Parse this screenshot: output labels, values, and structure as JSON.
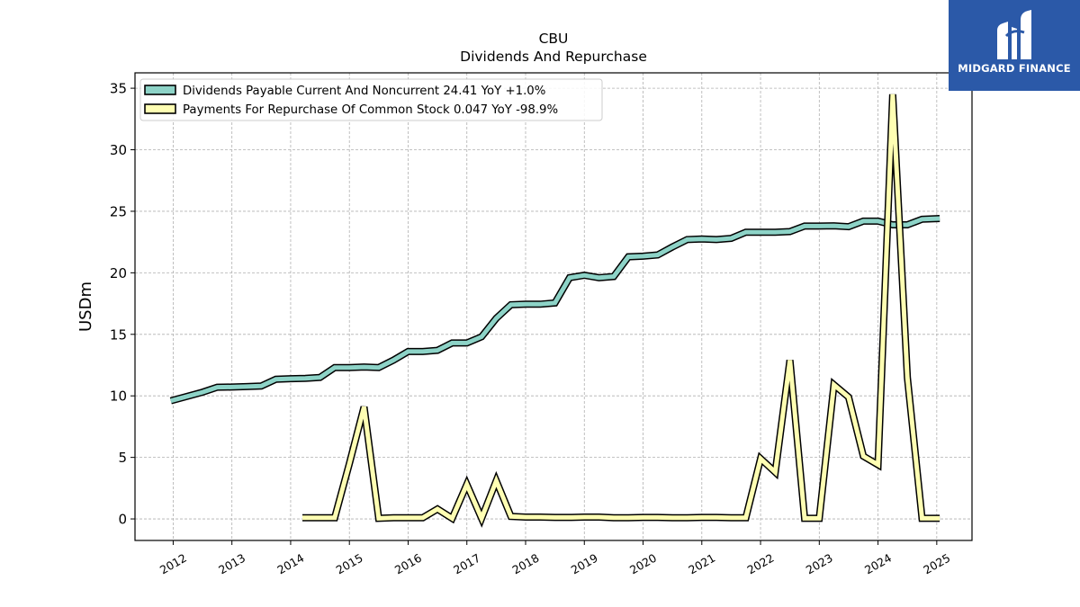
{
  "chart_data": {
    "type": "line",
    "title": "CBU",
    "subtitle": "Dividends And Repurchase",
    "ylabel": "USDm",
    "xlabel": "",
    "xlim": [
      2011.35,
      2025.6
    ],
    "ylim": [
      -1.75,
      36.25
    ],
    "yticks": [
      0,
      5,
      10,
      15,
      20,
      25,
      30,
      35
    ],
    "xticks": [
      "2012",
      "2013",
      "2014",
      "2015",
      "2016",
      "2017",
      "2018",
      "2019",
      "2020",
      "2021",
      "2022",
      "2023",
      "2024",
      "2025"
    ],
    "grid": true,
    "legend_position": "top-left",
    "series": [
      {
        "name": "Dividends Payable Current And Noncurrent  24.41 YoY +1.0%",
        "color": "#8dd3c7",
        "points": [
          [
            2011.96,
            9.6
          ],
          [
            2012.5,
            10.3
          ],
          [
            2012.75,
            10.7
          ],
          [
            2013.0,
            10.72
          ],
          [
            2013.25,
            10.75
          ],
          [
            2013.5,
            10.8
          ],
          [
            2013.75,
            11.35
          ],
          [
            2014.0,
            11.4
          ],
          [
            2014.25,
            11.42
          ],
          [
            2014.5,
            11.5
          ],
          [
            2014.75,
            12.3
          ],
          [
            2015.0,
            12.3
          ],
          [
            2015.25,
            12.35
          ],
          [
            2015.5,
            12.3
          ],
          [
            2015.75,
            12.9
          ],
          [
            2016.0,
            13.6
          ],
          [
            2016.25,
            13.6
          ],
          [
            2016.5,
            13.7
          ],
          [
            2016.75,
            14.3
          ],
          [
            2017.0,
            14.3
          ],
          [
            2017.25,
            14.8
          ],
          [
            2017.5,
            16.3
          ],
          [
            2017.75,
            17.4
          ],
          [
            2018.0,
            17.45
          ],
          [
            2018.25,
            17.45
          ],
          [
            2018.5,
            17.55
          ],
          [
            2018.75,
            19.6
          ],
          [
            2019.0,
            19.8
          ],
          [
            2019.25,
            19.6
          ],
          [
            2019.5,
            19.7
          ],
          [
            2019.75,
            21.3
          ],
          [
            2020.0,
            21.35
          ],
          [
            2020.25,
            21.45
          ],
          [
            2020.5,
            22.1
          ],
          [
            2020.75,
            22.7
          ],
          [
            2021.0,
            22.75
          ],
          [
            2021.25,
            22.7
          ],
          [
            2021.5,
            22.8
          ],
          [
            2021.75,
            23.3
          ],
          [
            2022.0,
            23.3
          ],
          [
            2022.25,
            23.3
          ],
          [
            2022.5,
            23.35
          ],
          [
            2022.75,
            23.8
          ],
          [
            2023.0,
            23.8
          ],
          [
            2023.25,
            23.82
          ],
          [
            2023.5,
            23.75
          ],
          [
            2023.75,
            24.2
          ],
          [
            2024.0,
            24.2
          ],
          [
            2024.25,
            23.9
          ],
          [
            2024.5,
            23.9
          ],
          [
            2024.75,
            24.35
          ],
          [
            2025.05,
            24.41
          ]
        ]
      },
      {
        "name": "Payments For Repurchase Of Common Stock  0.047 YoY -98.9%",
        "color": "#ffffb3",
        "points": [
          [
            2014.2,
            0.1
          ],
          [
            2014.5,
            0.1
          ],
          [
            2014.75,
            0.1
          ],
          [
            2015.0,
            4.5
          ],
          [
            2015.25,
            9.1
          ],
          [
            2015.5,
            0.05
          ],
          [
            2015.75,
            0.1
          ],
          [
            2016.0,
            0.1
          ],
          [
            2016.25,
            0.1
          ],
          [
            2016.5,
            0.8
          ],
          [
            2016.75,
            0.05
          ],
          [
            2017.0,
            2.8
          ],
          [
            2017.25,
            0.05
          ],
          [
            2017.5,
            3.1
          ],
          [
            2017.75,
            0.2
          ],
          [
            2018.0,
            0.15
          ],
          [
            2018.25,
            0.15
          ],
          [
            2018.5,
            0.12
          ],
          [
            2018.75,
            0.12
          ],
          [
            2019.0,
            0.15
          ],
          [
            2019.25,
            0.15
          ],
          [
            2019.5,
            0.1
          ],
          [
            2019.75,
            0.1
          ],
          [
            2020.0,
            0.12
          ],
          [
            2020.25,
            0.12
          ],
          [
            2020.5,
            0.1
          ],
          [
            2020.75,
            0.1
          ],
          [
            2021.0,
            0.12
          ],
          [
            2021.25,
            0.12
          ],
          [
            2021.5,
            0.1
          ],
          [
            2021.75,
            0.1
          ],
          [
            2022.0,
            4.9
          ],
          [
            2022.25,
            3.8
          ],
          [
            2022.5,
            12.9
          ],
          [
            2022.75,
            0.05
          ],
          [
            2023.0,
            0.05
          ],
          [
            2023.25,
            10.9
          ],
          [
            2023.5,
            9.9
          ],
          [
            2023.75,
            5.1
          ],
          [
            2024.0,
            4.4
          ],
          [
            2024.25,
            34.5
          ],
          [
            2024.5,
            11.5
          ],
          [
            2024.75,
            0.05
          ],
          [
            2025.05,
            0.047
          ]
        ]
      }
    ]
  },
  "logo": {
    "text": "MIDGARD FINANCE",
    "icon": "midgard-logo-mark-icon",
    "background": "#2b59a8"
  }
}
